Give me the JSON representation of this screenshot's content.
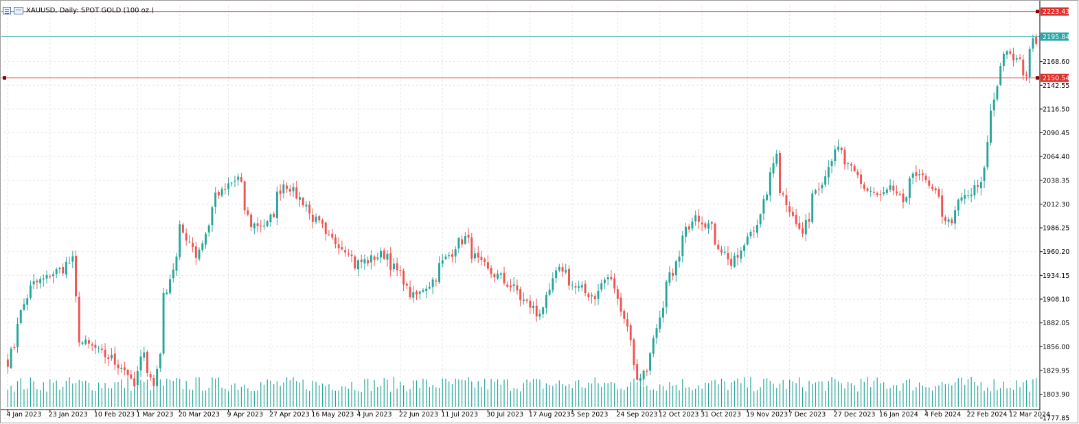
{
  "header": {
    "symbol": "XAUUSD",
    "timeframe": "Daily",
    "description": "SPOT GOLD (100 oz.)",
    "full_title": "XAUUSD, Daily:  SPOT GOLD (100 oz.)"
  },
  "colors": {
    "up": "#26a69a",
    "down": "#ef5350",
    "volume": "#26a69a",
    "hline_red": "#e0302b",
    "hline_teal": "#2aa6a6",
    "grid": "#e6e6e6",
    "axis": "#000000"
  },
  "levels": [
    {
      "price": 2223.43,
      "label": "2223.43",
      "kind": "red"
    },
    {
      "price": 2195.84,
      "label": "2195.84",
      "kind": "teal"
    },
    {
      "price": 2150.54,
      "label": "2150.54",
      "kind": "red"
    }
  ],
  "chart_data": {
    "type": "candlestick",
    "title": "XAUUSD, Daily:  SPOT GOLD (100 oz.)",
    "ylim": [
      1790,
      2230
    ],
    "y_ticks": [
      "2168.60",
      "2142.55",
      "2116.50",
      "2090.45",
      "2064.40",
      "2038.35",
      "2012.30",
      "1986.25",
      "1960.20",
      "1934.15",
      "1908.10",
      "1882.05",
      "1856.00",
      "1829.95",
      "1803.90",
      "1777.85"
    ],
    "x_ticks": [
      "4 Jan 2023",
      "23 Jan 2023",
      "10 Feb 2023",
      "1 Mar 2023",
      "20 Mar 2023",
      "9 Apr 2023",
      "27 Apr 2023",
      "16 May 2023",
      "4 Jun 2023",
      "22 Jun 2023",
      "11 Jul 2023",
      "30 Jul 2023",
      "17 Aug 2023",
      "5 Sep 2023",
      "24 Sep 2023",
      "12 Oct 2023",
      "31 Oct 2023",
      "19 Nov 2023",
      "7 Dec 2023",
      "27 Dec 2023",
      "16 Jan 2024",
      "4 Feb 2024",
      "22 Feb 2024",
      "12 Mar 2024"
    ],
    "close_anchors": [
      {
        "date": "4 Jan 2023",
        "close": 1840
      },
      {
        "date": "13 Jan 2023",
        "close": 1920
      },
      {
        "date": "26 Jan 2023",
        "close": 1940
      },
      {
        "date": "1 Feb 2023",
        "close": 1950
      },
      {
        "date": "3 Feb 2023",
        "close": 1865
      },
      {
        "date": "22 Feb 2023",
        "close": 1835
      },
      {
        "date": "28 Feb 2023",
        "close": 1812
      },
      {
        "date": "3 Mar 2023",
        "close": 1855
      },
      {
        "date": "8 Mar 2023",
        "close": 1813
      },
      {
        "date": "13 Mar 2023",
        "close": 1910
      },
      {
        "date": "20 Mar 2023",
        "close": 1985
      },
      {
        "date": "27 Mar 2023",
        "close": 1955
      },
      {
        "date": "4 Apr 2023",
        "close": 2020
      },
      {
        "date": "13 Apr 2023",
        "close": 2040
      },
      {
        "date": "19 Apr 2023",
        "close": 1990
      },
      {
        "date": "26 Apr 2023",
        "close": 1990
      },
      {
        "date": "3 May 2023",
        "close": 2035
      },
      {
        "date": "8 May 2023",
        "close": 2025
      },
      {
        "date": "12 May 2023",
        "close": 2012
      },
      {
        "date": "22 May 2023",
        "close": 1975
      },
      {
        "date": "31 May 2023",
        "close": 1963
      },
      {
        "date": "2 Jun 2023",
        "close": 1945
      },
      {
        "date": "16 Jun 2023",
        "close": 1958
      },
      {
        "date": "28 Jun 2023",
        "close": 1910
      },
      {
        "date": "5 Jul 2023",
        "close": 1925
      },
      {
        "date": "14 Jul 2023",
        "close": 1960
      },
      {
        "date": "20 Jul 2023",
        "close": 1975
      },
      {
        "date": "27 Jul 2023",
        "close": 1945
      },
      {
        "date": "8 Aug 2023",
        "close": 1925
      },
      {
        "date": "21 Aug 2023",
        "close": 1890
      },
      {
        "date": "29 Aug 2023",
        "close": 1935
      },
      {
        "date": "31 Aug 2023",
        "close": 1942
      },
      {
        "date": "6 Sep 2023",
        "close": 1920
      },
      {
        "date": "14 Sep 2023",
        "close": 1912
      },
      {
        "date": "20 Sep 2023",
        "close": 1932
      },
      {
        "date": "26 Sep 2023",
        "close": 1900
      },
      {
        "date": "3 Oct 2023",
        "close": 1822
      },
      {
        "date": "6 Oct 2023",
        "close": 1830
      },
      {
        "date": "10 Oct 2023",
        "close": 1862
      },
      {
        "date": "16 Oct 2023",
        "close": 1925
      },
      {
        "date": "23 Oct 2023",
        "close": 1975
      },
      {
        "date": "27 Oct 2023",
        "close": 2005
      },
      {
        "date": "2 Nov 2023",
        "close": 1990
      },
      {
        "date": "9 Nov 2023",
        "close": 1958
      },
      {
        "date": "13 Nov 2023",
        "close": 1945
      },
      {
        "date": "20 Nov 2023",
        "close": 1978
      },
      {
        "date": "27 Nov 2023",
        "close": 2012
      },
      {
        "date": "1 Dec 2023",
        "close": 2072
      },
      {
        "date": "4 Dec 2023",
        "close": 2028
      },
      {
        "date": "8 Dec 2023",
        "close": 2002
      },
      {
        "date": "13 Dec 2023",
        "close": 1980
      },
      {
        "date": "18 Dec 2023",
        "close": 2025
      },
      {
        "date": "28 Dec 2023",
        "close": 2072
      },
      {
        "date": "4 Jan 2024",
        "close": 2045
      },
      {
        "date": "10 Jan 2024",
        "close": 2028
      },
      {
        "date": "16 Jan 2024",
        "close": 2020
      },
      {
        "date": "19 Jan 2024",
        "close": 2030
      },
      {
        "date": "25 Jan 2024",
        "close": 2015
      },
      {
        "date": "1 Feb 2024",
        "close": 2050
      },
      {
        "date": "8 Feb 2024",
        "close": 2022
      },
      {
        "date": "14 Feb 2024",
        "close": 1992
      },
      {
        "date": "20 Feb 2024",
        "close": 2018
      },
      {
        "date": "28 Feb 2024",
        "close": 2032
      },
      {
        "date": "1 Mar 2024",
        "close": 2078
      },
      {
        "date": "5 Mar 2024",
        "close": 2128
      },
      {
        "date": "8 Mar 2024",
        "close": 2180
      },
      {
        "date": "14 Mar 2024",
        "close": 2170
      },
      {
        "date": "19 Mar 2024",
        "close": 2155
      },
      {
        "date": "21 Mar 2024",
        "close": 2200
      },
      {
        "date": "22 Mar 2024",
        "close": 2188
      }
    ]
  }
}
